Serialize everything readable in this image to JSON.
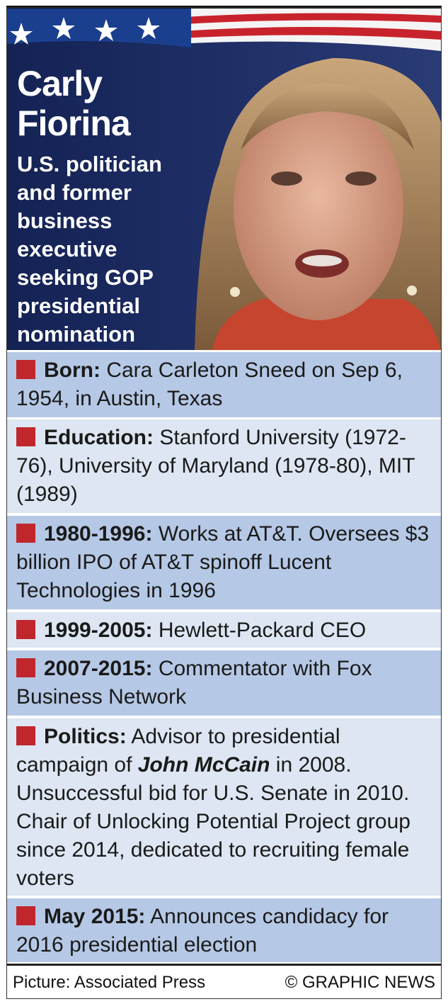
{
  "header": {
    "name": "Carly Fiorina",
    "description": "U.S. politician and former business executive seeking GOP presidential nomination"
  },
  "facts": [
    {
      "label": "Born:",
      "text": [
        "Cara Carleton Sneed on Sep 6, 1954, in Austin, Texas"
      ]
    },
    {
      "label": "Education:",
      "text": [
        "Stanford University (1972-76), University of Maryland (1978-80), MIT (1989)"
      ]
    },
    {
      "label": "1980-1996:",
      "text": [
        "Works at AT&T. Oversees $3 billion IPO of AT&T spinoff Lucent Technologies in 1996"
      ]
    },
    {
      "label": "1999-2005:",
      "text": [
        "Hewlett-Packard CEO"
      ]
    },
    {
      "label": "2007-2015:",
      "text": [
        "Commentator with Fox Business Network"
      ]
    },
    {
      "label": "Politics:",
      "text": [
        "Advisor to presidential campaign of ",
        "John McCain",
        " in 2008. Unsuccessful bid for U.S. Senate in 2010. Chair of Unlocking Potential Project group since 2014, dedicated to recruiting female voters"
      ]
    },
    {
      "label": "May 2015:",
      "text": [
        "Announces candidacy for 2016 presidential election"
      ]
    }
  ],
  "footer": {
    "picture_credit": "Picture: Associated Press",
    "copyright": "© GRAPHIC NEWS"
  }
}
